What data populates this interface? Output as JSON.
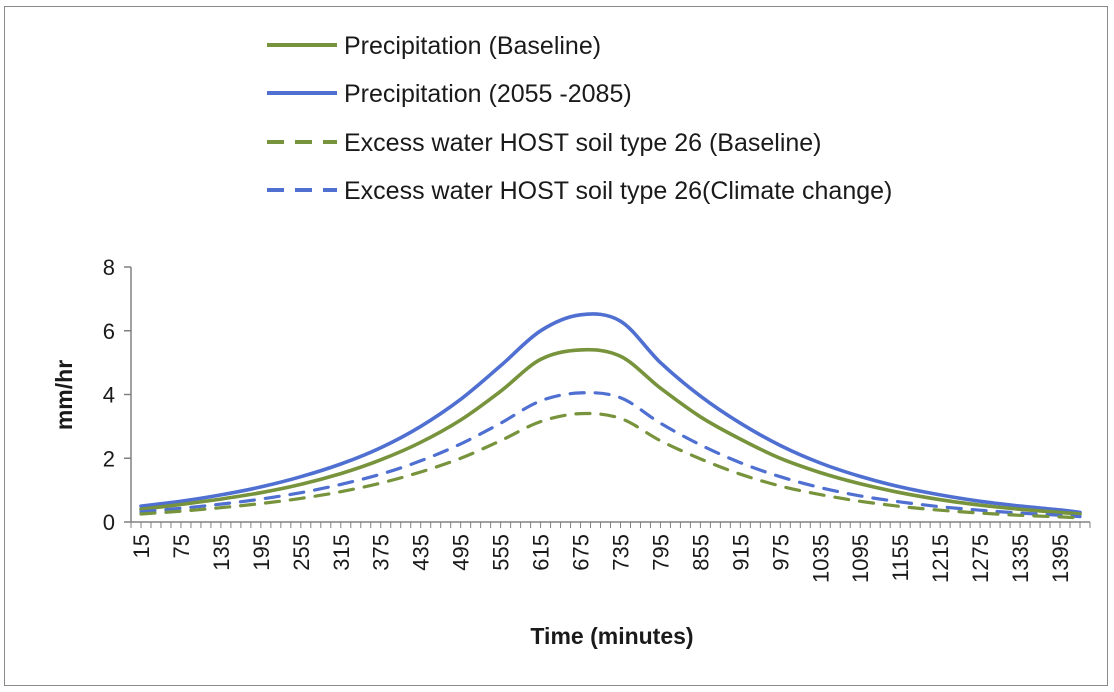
{
  "chart_data": {
    "type": "line",
    "title": "",
    "xlabel": "Time (minutes)",
    "ylabel": "mm/hr",
    "ylim": [
      0,
      8
    ],
    "yticks": [
      "0",
      "2",
      "4",
      "6",
      "8"
    ],
    "x_tick_labels": [
      "15",
      "75",
      "135",
      "195",
      "255",
      "315",
      "375",
      "435",
      "495",
      "555",
      "615",
      "675",
      "735",
      "795",
      "855",
      "915",
      "975",
      "1035",
      "1095",
      "1155",
      "1215",
      "1275",
      "1335",
      "1395"
    ],
    "x": [
      15,
      75,
      135,
      195,
      255,
      315,
      375,
      435,
      495,
      555,
      615,
      675,
      735,
      795,
      855,
      915,
      975,
      1035,
      1095,
      1155,
      1215,
      1275,
      1335,
      1395,
      1425
    ],
    "legend_position": "top",
    "grid": false,
    "series": [
      {
        "name": "Precipitation (Baseline)",
        "color": "#77933c",
        "style": "solid",
        "values": [
          0.4,
          0.55,
          0.72,
          0.92,
          1.18,
          1.52,
          1.95,
          2.5,
          3.2,
          4.1,
          5.1,
          5.4,
          5.2,
          4.2,
          3.3,
          2.6,
          2.0,
          1.55,
          1.2,
          0.92,
          0.7,
          0.53,
          0.4,
          0.3,
          0.25
        ]
      },
      {
        "name": "Precipitation (2055 -2085)",
        "color": "#4f6fd1",
        "style": "solid",
        "values": [
          0.5,
          0.65,
          0.85,
          1.1,
          1.42,
          1.82,
          2.33,
          3.0,
          3.85,
          4.9,
          6.0,
          6.5,
          6.3,
          5.0,
          3.95,
          3.1,
          2.4,
          1.85,
          1.43,
          1.1,
          0.85,
          0.65,
          0.5,
          0.38,
          0.3
        ]
      },
      {
        "name": "Excess water HOST soil type 26 (Baseline)",
        "color": "#77933c",
        "style": "dashed",
        "values": [
          0.25,
          0.34,
          0.45,
          0.58,
          0.74,
          0.95,
          1.22,
          1.57,
          2.0,
          2.55,
          3.15,
          3.4,
          3.25,
          2.55,
          1.98,
          1.5,
          1.13,
          0.86,
          0.65,
          0.49,
          0.37,
          0.28,
          0.21,
          0.16,
          0.13
        ]
      },
      {
        "name": "Excess water HOST soil type 26(Climate change)",
        "color": "#4f6fd1",
        "style": "dashed",
        "values": [
          0.32,
          0.43,
          0.56,
          0.72,
          0.92,
          1.18,
          1.5,
          1.92,
          2.45,
          3.1,
          3.8,
          4.05,
          3.9,
          3.1,
          2.42,
          1.86,
          1.42,
          1.08,
          0.82,
          0.63,
          0.48,
          0.37,
          0.28,
          0.21,
          0.17
        ]
      }
    ]
  }
}
